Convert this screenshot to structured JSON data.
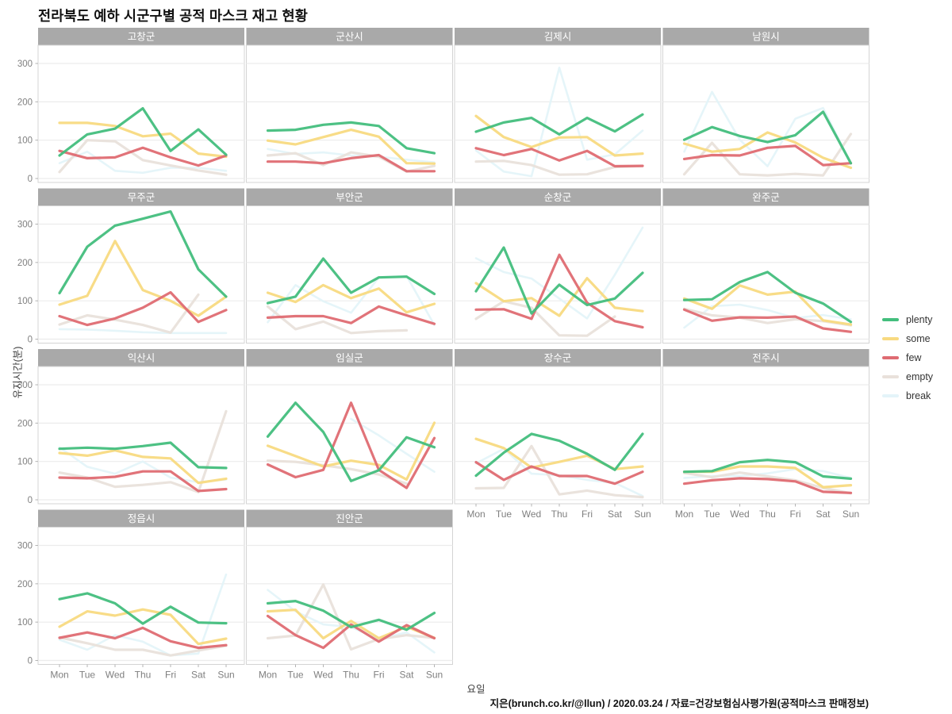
{
  "header": {
    "title": "전라북도 예하 시군구별 공적 마스크 재고 현황"
  },
  "caption": "지은(brunch.co.kr/@llun) / 2020.03.24 / 자료=건강보험심사평가원(공적마스크 판매정보)",
  "chart_data": {
    "type": "line",
    "title": "전라북도 예하 시군구별 공적 마스크 재고 현황",
    "xlabel": "요일",
    "ylabel": "유지시간(분)",
    "x": [
      "Mon",
      "Tue",
      "Wed",
      "Thu",
      "Fri",
      "Sat",
      "Sun"
    ],
    "yticks": [
      0,
      100,
      200,
      300
    ],
    "ylim": [
      -12,
      348
    ],
    "grid": "horizontal-only",
    "legend_position": "right",
    "legend": [
      {
        "name": "plenty",
        "color": "#43be7d"
      },
      {
        "name": "some",
        "color": "#f8da81"
      },
      {
        "name": "few",
        "color": "#df6b72"
      },
      {
        "name": "empty",
        "color": "#e9e1db"
      },
      {
        "name": "break",
        "color": "#e4f4f9"
      }
    ],
    "facets": [
      {
        "name": "고창군",
        "series": {
          "plenty": [
            60,
            115,
            130,
            183,
            72,
            128,
            62
          ],
          "some": [
            145,
            145,
            137,
            110,
            117,
            65,
            57
          ],
          "few": [
            72,
            53,
            55,
            80,
            55,
            34,
            60
          ],
          "empty": [
            17,
            100,
            97,
            48,
            34,
            21,
            10
          ],
          "break": [
            40,
            70,
            20,
            15,
            28,
            28,
            20
          ]
        }
      },
      {
        "name": "군산시",
        "series": {
          "plenty": [
            125,
            127,
            140,
            146,
            137,
            79,
            66
          ],
          "some": [
            99,
            89,
            108,
            127,
            109,
            40,
            39
          ],
          "few": [
            44,
            44,
            40,
            53,
            61,
            19,
            19
          ],
          "empty": [
            60,
            66,
            35,
            68,
            57,
            18,
            33
          ],
          "break": [
            77,
            64,
            68,
            60,
            57,
            49,
            42
          ]
        }
      },
      {
        "name": "김제시",
        "series": {
          "plenty": [
            122,
            146,
            158,
            115,
            158,
            123,
            167
          ],
          "some": [
            163,
            108,
            82,
            107,
            108,
            60,
            65
          ],
          "few": [
            79,
            61,
            77,
            47,
            72,
            32,
            33
          ],
          "empty": [
            44,
            46,
            35,
            10,
            11,
            30,
            33
          ],
          "break": [
            73,
            18,
            6,
            289,
            49,
            63,
            125
          ]
        }
      },
      {
        "name": "남원시",
        "series": {
          "plenty": [
            101,
            134,
            111,
            95,
            113,
            174,
            40
          ],
          "some": [
            91,
            70,
            77,
            120,
            94,
            54,
            28
          ],
          "few": [
            51,
            61,
            60,
            80,
            85,
            35,
            40
          ],
          "empty": [
            11,
            93,
            11,
            8,
            12,
            8,
            116
          ],
          "break": [
            70,
            226,
            101,
            32,
            156,
            184,
            40
          ]
        }
      },
      {
        "name": "무주군",
        "series": {
          "plenty": [
            120,
            241,
            296,
            314,
            333,
            182,
            111
          ],
          "some": [
            90,
            113,
            256,
            128,
            100,
            61,
            111
          ],
          "few": [
            60,
            37,
            54,
            82,
            122,
            45,
            76
          ],
          "empty": [
            38,
            62,
            51,
            37,
            17,
            116,
            null
          ],
          "break": [
            26,
            25,
            22,
            18,
            16,
            16,
            16
          ]
        }
      },
      {
        "name": "부안군",
        "series": {
          "plenty": [
            94,
            111,
            210,
            121,
            161,
            163,
            118
          ],
          "some": [
            121,
            97,
            141,
            107,
            132,
            70,
            92
          ],
          "few": [
            56,
            60,
            60,
            42,
            85,
            62,
            40
          ],
          "empty": [
            85,
            26,
            46,
            16,
            21,
            23,
            null
          ],
          "break": [
            44,
            141,
            99,
            69,
            161,
            165,
            37
          ]
        }
      },
      {
        "name": "순창군",
        "series": {
          "plenty": [
            125,
            239,
            67,
            142,
            89,
            106,
            173
          ],
          "some": [
            146,
            99,
            107,
            61,
            159,
            82,
            73
          ],
          "few": [
            77,
            78,
            53,
            220,
            95,
            47,
            31
          ],
          "empty": [
            53,
            99,
            82,
            10,
            9,
            59,
            null
          ],
          "break": [
            211,
            175,
            158,
            106,
            54,
            168,
            291
          ]
        }
      },
      {
        "name": "완주군",
        "series": {
          "plenty": [
            102,
            104,
            149,
            175,
            121,
            93,
            45
          ],
          "some": [
            106,
            79,
            140,
            116,
            124,
            49,
            38
          ],
          "few": [
            77,
            48,
            57,
            56,
            59,
            28,
            19
          ],
          "empty": [
            79,
            62,
            56,
            42,
            52,
            47,
            36
          ],
          "break": [
            30,
            86,
            90,
            76,
            55,
            63,
            52
          ]
        }
      },
      {
        "name": "익산시",
        "series": {
          "plenty": [
            133,
            136,
            133,
            140,
            149,
            85,
            83
          ],
          "some": [
            122,
            115,
            129,
            112,
            108,
            44,
            55
          ],
          "few": [
            58,
            56,
            60,
            74,
            74,
            23,
            28
          ],
          "empty": [
            71,
            58,
            34,
            39,
            46,
            20,
            231
          ],
          "break": [
            137,
            86,
            68,
            100,
            58,
            46,
            53
          ]
        }
      },
      {
        "name": "임실군",
        "series": {
          "plenty": [
            165,
            253,
            177,
            49,
            77,
            163,
            137
          ],
          "some": [
            141,
            114,
            87,
            102,
            91,
            53,
            201
          ],
          "few": [
            92,
            59,
            78,
            253,
            78,
            31,
            161
          ],
          "empty": [
            102,
            99,
            90,
            80,
            66,
            42,
            null
          ],
          "break": [
            null,
            null,
            null,
            211,
            168,
            120,
            73
          ]
        }
      },
      {
        "name": "장수군",
        "series": {
          "plenty": [
            63,
            123,
            172,
            154,
            120,
            78,
            172
          ],
          "some": [
            159,
            135,
            84,
            99,
            115,
            80,
            87
          ],
          "few": [
            98,
            52,
            87,
            62,
            62,
            42,
            73
          ],
          "empty": [
            30,
            31,
            140,
            14,
            24,
            12,
            7
          ],
          "break": [
            95,
            133,
            68,
            64,
            52,
            44,
            10
          ]
        }
      },
      {
        "name": "전주시",
        "series": {
          "plenty": [
            73,
            75,
            98,
            104,
            98,
            61,
            55
          ],
          "some": [
            73,
            73,
            87,
            87,
            83,
            33,
            38
          ],
          "few": [
            42,
            51,
            56,
            54,
            48,
            21,
            18
          ],
          "empty": [
            70,
            59,
            71,
            61,
            51,
            31,
            17
          ],
          "break": [
            57,
            62,
            62,
            69,
            80,
            75,
            57
          ]
        }
      },
      {
        "name": "정읍시",
        "series": {
          "plenty": [
            160,
            175,
            149,
            96,
            140,
            99,
            97
          ],
          "some": [
            88,
            128,
            117,
            133,
            119,
            43,
            57
          ],
          "few": [
            59,
            73,
            58,
            85,
            50,
            33,
            40
          ],
          "empty": [
            60,
            45,
            28,
            28,
            13,
            26,
            38
          ],
          "break": [
            54,
            28,
            66,
            49,
            13,
            18,
            224
          ]
        }
      },
      {
        "name": "진안군",
        "series": {
          "plenty": [
            149,
            155,
            130,
            87,
            106,
            80,
            124
          ],
          "some": [
            128,
            132,
            58,
            103,
            58,
            88,
            59
          ],
          "few": [
            116,
            66,
            33,
            94,
            49,
            92,
            58
          ],
          "empty": [
            58,
            65,
            198,
            29,
            56,
            66,
            59
          ],
          "break": [
            184,
            128,
            94,
            87,
            56,
            73,
            21
          ]
        }
      }
    ]
  }
}
